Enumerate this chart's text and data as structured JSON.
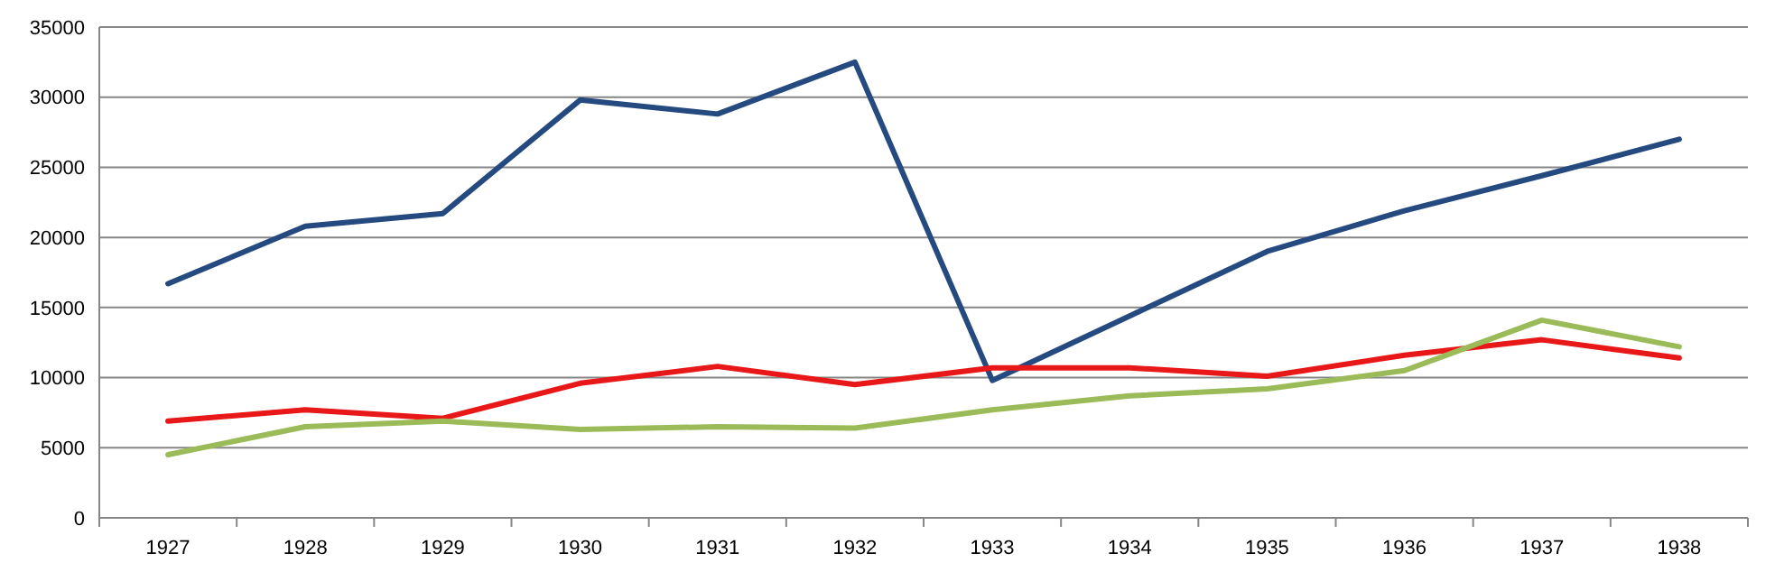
{
  "chart_data": {
    "type": "line",
    "categories": [
      "1927",
      "1928",
      "1929",
      "1930",
      "1931",
      "1932",
      "1933",
      "1934",
      "1935",
      "1936",
      "1937",
      "1938"
    ],
    "series": [
      {
        "color": "#254a80",
        "values": [
          16700,
          20800,
          21700,
          29800,
          28800,
          32500,
          9800,
          14400,
          19000,
          21900,
          24400,
          27000
        ]
      },
      {
        "color": "#e81818",
        "values": [
          6900,
          7700,
          7100,
          9600,
          10800,
          9500,
          10700,
          10700,
          10100,
          11600,
          12700,
          11400
        ]
      },
      {
        "color": "#9bbb59",
        "values": [
          4500,
          6500,
          6900,
          6300,
          6500,
          6400,
          7700,
          8700,
          9200,
          10500,
          14100,
          12200
        ]
      }
    ],
    "ylim": [
      0,
      35000
    ],
    "yticks": [
      0,
      5000,
      10000,
      15000,
      20000,
      25000,
      30000,
      35000
    ],
    "grid": "y",
    "marker": "none",
    "line_style": "solid"
  }
}
